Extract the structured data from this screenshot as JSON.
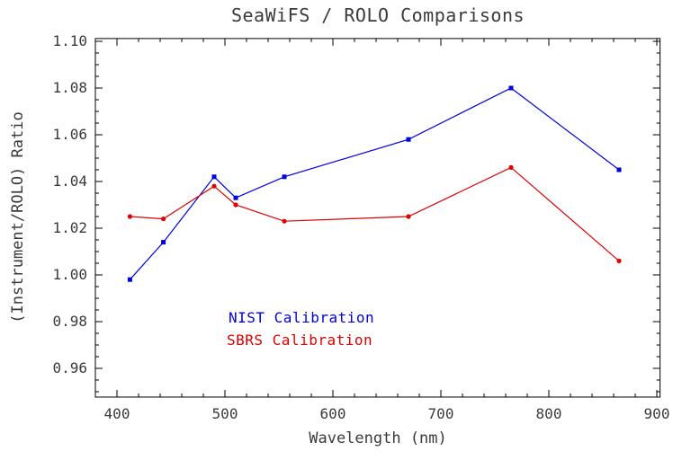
{
  "chart_data": {
    "type": "line",
    "title": "SeaWiFS / ROLO Comparisons",
    "xlabel": "Wavelength (nm)",
    "ylabel": "(Instrument/ROLO) Ratio",
    "x": [
      412,
      443,
      490,
      510,
      555,
      670,
      765,
      865
    ],
    "series": [
      {
        "name": "NIST Calibration",
        "color": "#0000E0",
        "marker": "square",
        "values": [
          0.998,
          1.014,
          1.042,
          1.033,
          1.042,
          1.058,
          1.08,
          1.045
        ]
      },
      {
        "name": "SBRS Calibration",
        "color": "#E00000",
        "marker": "circle",
        "values": [
          1.025,
          1.024,
          1.038,
          1.03,
          1.023,
          1.025,
          1.046,
          1.006
        ]
      }
    ],
    "xlim": [
      380,
      903
    ],
    "ylim": [
      0.9477,
      1.1012
    ],
    "xticks": [
      400,
      500,
      600,
      700,
      800,
      900
    ],
    "yticks": [
      0.96,
      0.98,
      1.0,
      1.02,
      1.04,
      1.06,
      1.08,
      1.1
    ],
    "x_minor_interval": 20,
    "y_minor_interval": 0.005,
    "grid": false,
    "legend_position": "inside-bottom-center-left",
    "legend": [
      {
        "label": "NIST Calibration",
        "color": "#0000E0"
      },
      {
        "label": "SBRS Calibration",
        "color": "#E00000"
      }
    ]
  },
  "colors": {
    "background": "#FFFFFF",
    "axis": "#000000",
    "text": "#3A3A3A"
  }
}
